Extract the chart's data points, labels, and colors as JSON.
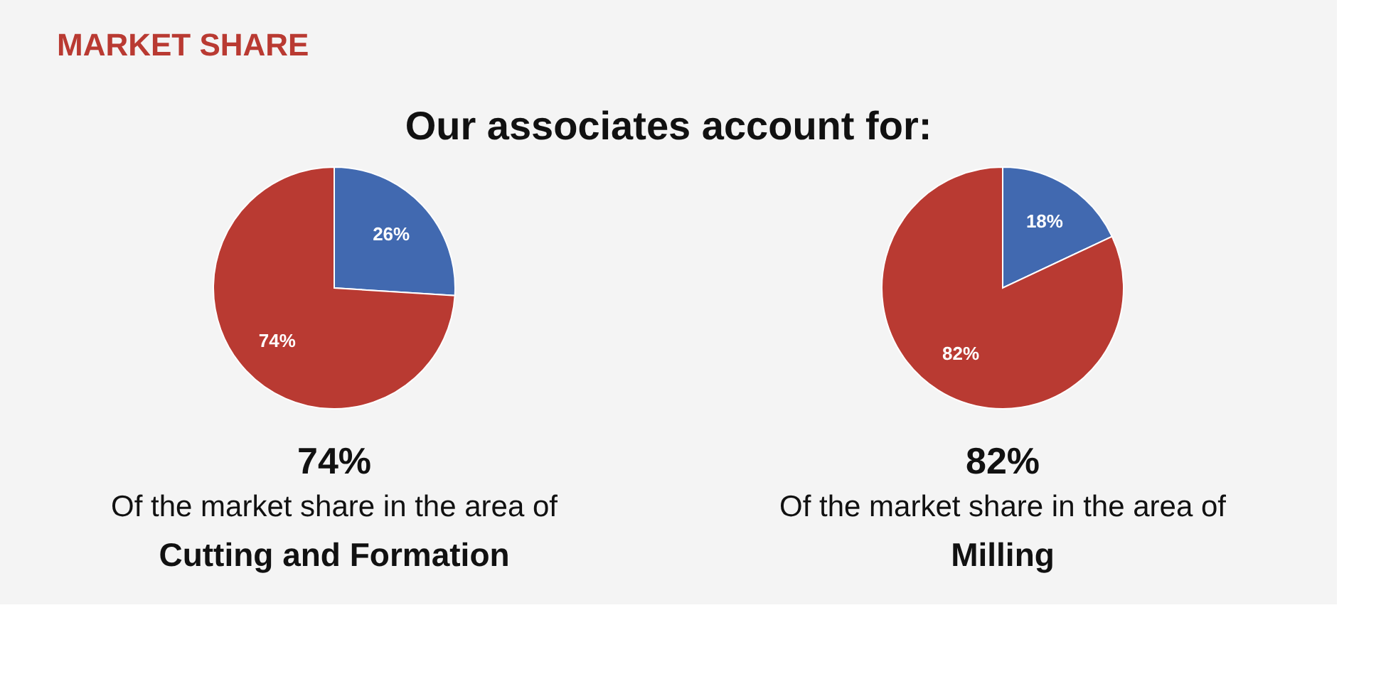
{
  "chart_data": [
    {
      "type": "pie",
      "title": "MARKET SHARE",
      "subtitle": "Our associates account for:",
      "categories": [
        null,
        null
      ],
      "values": [
        26,
        74
      ],
      "colors": [
        "#4169b0",
        "#b93a32"
      ],
      "value_labels": [
        "26%",
        "74%"
      ],
      "annotations": [
        "74%",
        "Of the market share in the area of",
        "Cutting and Formation"
      ]
    },
    {
      "type": "pie",
      "categories": [
        null,
        null
      ],
      "values": [
        18,
        82
      ],
      "colors": [
        "#4169b0",
        "#b93a32"
      ],
      "value_labels": [
        "18%",
        "82%"
      ],
      "annotations": [
        "82%",
        "Of the market share in the area of",
        "Milling"
      ]
    }
  ]
}
